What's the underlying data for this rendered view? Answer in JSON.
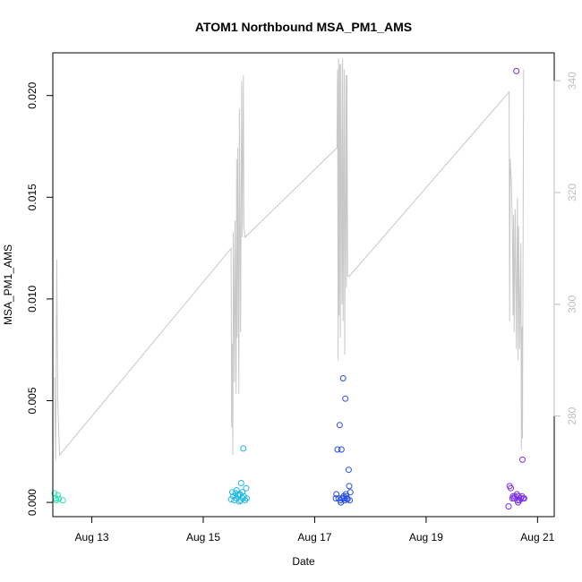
{
  "chart_data": {
    "type": "scatter",
    "title": "ATOM1 Northbound MSA_PM1_AMS",
    "xlabel": "Date",
    "ylabel": "MSA_PM1_AMS",
    "xlim": [
      12.3,
      21.3
    ],
    "ylim": [
      -0.0007,
      0.0221
    ],
    "x_ticks": [
      {
        "value": 13,
        "label": "Aug 13"
      },
      {
        "value": 15,
        "label": "Aug 15"
      },
      {
        "value": 17,
        "label": "Aug 17"
      },
      {
        "value": 19,
        "label": "Aug 19"
      },
      {
        "value": 21,
        "label": "Aug 21"
      }
    ],
    "y_ticks": [
      {
        "value": 0.0,
        "label": "0.000"
      },
      {
        "value": 0.005,
        "label": "0.005"
      },
      {
        "value": 0.01,
        "label": "0.010"
      },
      {
        "value": 0.015,
        "label": "0.015"
      },
      {
        "value": 0.02,
        "label": "0.020"
      }
    ],
    "y2lim": [
      262,
      345
    ],
    "y2_ticks": [
      {
        "value": 280,
        "label": "280"
      },
      {
        "value": 300,
        "label": "300"
      },
      {
        "value": 320,
        "label": "320"
      },
      {
        "value": 340,
        "label": "340"
      }
    ],
    "colors": {
      "secondary_line": "#c8c8c8",
      "right_axis": "#bfbfbf",
      "cluster1": "#2de0b4",
      "cluster2": "#1fb8e8",
      "cluster3": "#2850e0",
      "cluster4": "#7a2ee8"
    },
    "series": [
      {
        "color": "#2de0b4",
        "points": [
          [
            12.33,
            0.00045
          ],
          [
            12.35,
            0.0002
          ],
          [
            12.36,
            0.0001
          ],
          [
            12.39,
            0.00035
          ],
          [
            12.41,
            0.00018
          ],
          [
            12.48,
            0.0001
          ]
        ]
      },
      {
        "color": "#1fb8e8",
        "points": [
          [
            15.5,
            0.00015
          ],
          [
            15.52,
            0.0005
          ],
          [
            15.54,
            0.0003
          ],
          [
            15.56,
            0.0001
          ],
          [
            15.58,
            0.00045
          ],
          [
            15.6,
            0.0002
          ],
          [
            15.62,
            0.00035
          ],
          [
            15.64,
            0.0004
          ],
          [
            15.65,
            5e-05
          ],
          [
            15.67,
            0.0001
          ],
          [
            15.68,
            0.00095
          ],
          [
            15.7,
            0.0005
          ],
          [
            15.71,
            0.0002
          ],
          [
            15.72,
            0.00265
          ],
          [
            15.73,
            0.0003
          ],
          [
            15.75,
            0.0001
          ],
          [
            15.77,
            0.0007
          ],
          [
            15.78,
            0.0002
          ],
          [
            15.6,
            0.0006
          ],
          [
            15.66,
            0.0004
          ]
        ]
      },
      {
        "color": "#2850e0",
        "points": [
          [
            17.38,
            0.0002
          ],
          [
            17.39,
            0.0004
          ],
          [
            17.41,
            0.0026
          ],
          [
            17.43,
            0.0002
          ],
          [
            17.45,
            0.0038
          ],
          [
            17.46,
            0.0001
          ],
          [
            17.48,
            0.0026
          ],
          [
            17.49,
            0.0002
          ],
          [
            17.51,
            0.0061
          ],
          [
            17.52,
            0.0003
          ],
          [
            17.54,
            0.0001
          ],
          [
            17.55,
            0.0051
          ],
          [
            17.56,
            0.0004
          ],
          [
            17.58,
            0.0002
          ],
          [
            17.59,
            0.00015
          ],
          [
            17.61,
            0.0016
          ],
          [
            17.62,
            0.0008
          ],
          [
            17.63,
            0.0001
          ],
          [
            17.64,
            0.0005
          ],
          [
            17.53,
            0.0002
          ],
          [
            17.47,
            0.0
          ],
          [
            17.57,
            0.0003
          ]
        ]
      },
      {
        "color": "#7a2ee8",
        "points": [
          [
            20.48,
            -0.0002
          ],
          [
            20.5,
            0.0008
          ],
          [
            20.52,
            0.0007
          ],
          [
            20.55,
            0.0002
          ],
          [
            20.58,
            0.0002
          ],
          [
            20.6,
            0.0003
          ],
          [
            20.62,
            0.0212
          ],
          [
            20.63,
            0.0004
          ],
          [
            20.65,
            0.0
          ],
          [
            20.66,
            0.0003
          ],
          [
            20.68,
            0.0001
          ],
          [
            20.7,
            0.0002
          ],
          [
            20.72,
            0.0003
          ],
          [
            20.73,
            0.0021
          ],
          [
            20.74,
            0.0002
          ],
          [
            20.76,
            0.0002
          ],
          [
            20.64,
            0.0001
          ],
          [
            20.56,
            0.0003
          ]
        ]
      }
    ],
    "secondary_line": {
      "axis": "right",
      "points": [
        [
          12.33,
          287
        ],
        [
          12.35,
          272
        ],
        [
          12.37,
          308
        ],
        [
          12.39,
          282
        ],
        [
          12.42,
          273
        ],
        [
          15.5,
          310
        ],
        [
          15.51,
          278
        ],
        [
          15.52,
          293
        ],
        [
          15.53,
          273
        ],
        [
          15.54,
          313
        ],
        [
          15.56,
          286
        ],
        [
          15.57,
          315
        ],
        [
          15.59,
          284
        ],
        [
          15.6,
          326
        ],
        [
          15.61,
          294
        ],
        [
          15.62,
          328
        ],
        [
          15.64,
          284
        ],
        [
          15.65,
          335
        ],
        [
          15.67,
          295
        ],
        [
          15.69,
          340
        ],
        [
          15.7,
          312
        ],
        [
          15.72,
          341
        ],
        [
          15.73,
          314
        ],
        [
          15.75,
          312
        ],
        [
          17.4,
          328
        ],
        [
          17.41,
          342
        ],
        [
          17.42,
          290
        ],
        [
          17.43,
          344
        ],
        [
          17.44,
          298
        ],
        [
          17.45,
          343
        ],
        [
          17.46,
          294
        ],
        [
          17.47,
          343
        ],
        [
          17.49,
          300
        ],
        [
          17.5,
          344
        ],
        [
          17.51,
          297
        ],
        [
          17.53,
          342
        ],
        [
          17.54,
          291
        ],
        [
          17.56,
          341
        ],
        [
          17.57,
          303
        ],
        [
          17.58,
          341
        ],
        [
          17.59,
          305
        ],
        [
          17.62,
          305
        ],
        [
          20.49,
          338
        ],
        [
          20.5,
          297
        ],
        [
          20.51,
          326
        ],
        [
          20.53,
          322
        ],
        [
          20.55,
          313
        ],
        [
          20.56,
          298
        ],
        [
          20.57,
          316
        ],
        [
          20.58,
          295
        ],
        [
          20.6,
          317
        ],
        [
          20.62,
          292
        ],
        [
          20.64,
          319
        ],
        [
          20.65,
          290
        ],
        [
          20.66,
          314
        ],
        [
          20.68,
          292
        ],
        [
          20.7,
          311
        ],
        [
          20.71,
          274
        ],
        [
          20.72,
          296
        ],
        [
          20.73,
          276
        ],
        [
          20.75,
          342
        ]
      ]
    }
  }
}
